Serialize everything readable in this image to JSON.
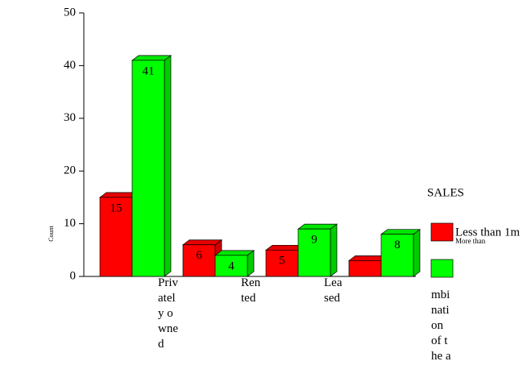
{
  "chart_data": {
    "type": "bar3d",
    "y_label": "Count",
    "categories": [
      "Privately owned",
      "Rented",
      "Leased",
      "mbination of the a"
    ],
    "series": [
      {
        "name": "Less than 1m",
        "color": "#ff0000",
        "values": [
          15,
          6,
          5,
          3
        ],
        "value_labels": [
          15,
          6,
          5,
          null
        ]
      },
      {
        "name": "More than",
        "color": "#00ff00",
        "values": [
          41,
          4,
          9,
          8
        ],
        "value_labels": [
          41,
          4,
          9,
          8
        ]
      }
    ],
    "ylim": [
      0,
      50
    ],
    "yticks": [
      0,
      10,
      20,
      30,
      40,
      50
    ],
    "legend_title": "SALES",
    "legend_position": "right"
  }
}
